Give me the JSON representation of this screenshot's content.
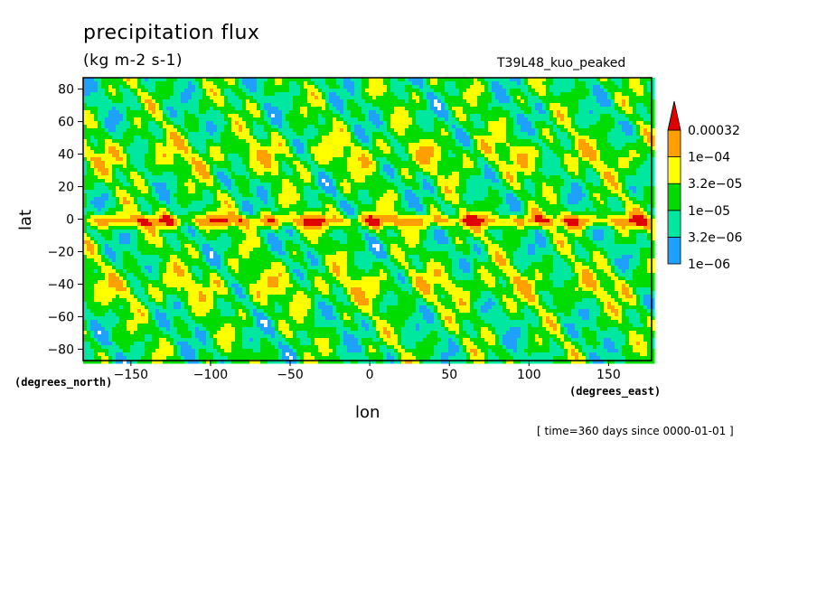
{
  "chart_data": {
    "type": "heatmap",
    "title": "precipitation flux",
    "units": "(kg m-2 s-1)",
    "run_label": "T39L48_kuo_peaked",
    "xlabel": "lon",
    "ylabel": "lat",
    "x_units": "(degrees_east)",
    "y_units": "(degrees_north)",
    "time_note": "[ time=360 days since 0000-01-01 ]",
    "xlim": [
      -180,
      177
    ],
    "ylim": [
      -87,
      87
    ],
    "x_ticks": [
      -150,
      -100,
      -50,
      0,
      50,
      100,
      150
    ],
    "y_ticks": [
      -80,
      -60,
      -40,
      -20,
      0,
      20,
      40,
      60,
      80
    ],
    "colorbar": {
      "levels": [
        "1e-06",
        "3.2e-06",
        "1e-05",
        "3.2e-05",
        "1e-04",
        "0.00032"
      ],
      "colors": [
        "#ffffff",
        "#1ea0ff",
        "#00e8a0",
        "#00dc00",
        "#ffff00",
        "#ffa000",
        "#e00000"
      ]
    }
  }
}
